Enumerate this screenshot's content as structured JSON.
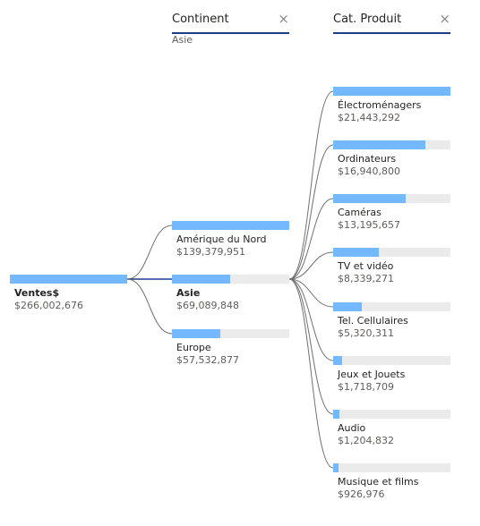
{
  "columns": [
    {
      "title": "Continent",
      "subtitle": "Asie"
    },
    {
      "title": "Cat. Produit",
      "subtitle": ""
    }
  ],
  "close_glyph": "×",
  "colors": {
    "bar_fill": "#74b9ff",
    "bar_track": "#ebebeb",
    "selected_link": "#1f3c88",
    "link": "#707070"
  },
  "root": {
    "label": "Ventes$",
    "value": "$266,002,676",
    "fraction": 1.0
  },
  "continents": [
    {
      "label": "Amérique du Nord",
      "value": "$139,379,951",
      "fraction": 1.0
    },
    {
      "label": "Asie",
      "value": "$69,089,848",
      "fraction": 0.496
    },
    {
      "label": "Europe",
      "value": "$57,532,877",
      "fraction": 0.413
    }
  ],
  "categories": [
    {
      "label": "Électroménagers",
      "value": "$21,443,292",
      "fraction": 1.0
    },
    {
      "label": "Ordinateurs",
      "value": "$16,940,800",
      "fraction": 0.79
    },
    {
      "label": "Caméras",
      "value": "$13,195,657",
      "fraction": 0.615
    },
    {
      "label": "TV et vidéo",
      "value": "$8,339,271",
      "fraction": 0.389
    },
    {
      "label": "Tel. Cellulaires",
      "value": "$5,320,311",
      "fraction": 0.248
    },
    {
      "label": "Jeux et Jouets",
      "value": "$1,718,709",
      "fraction": 0.08
    },
    {
      "label": "Audio",
      "value": "$1,204,832",
      "fraction": 0.056
    },
    {
      "label": "Musique et films",
      "value": "$926,976",
      "fraction": 0.043
    }
  ]
}
